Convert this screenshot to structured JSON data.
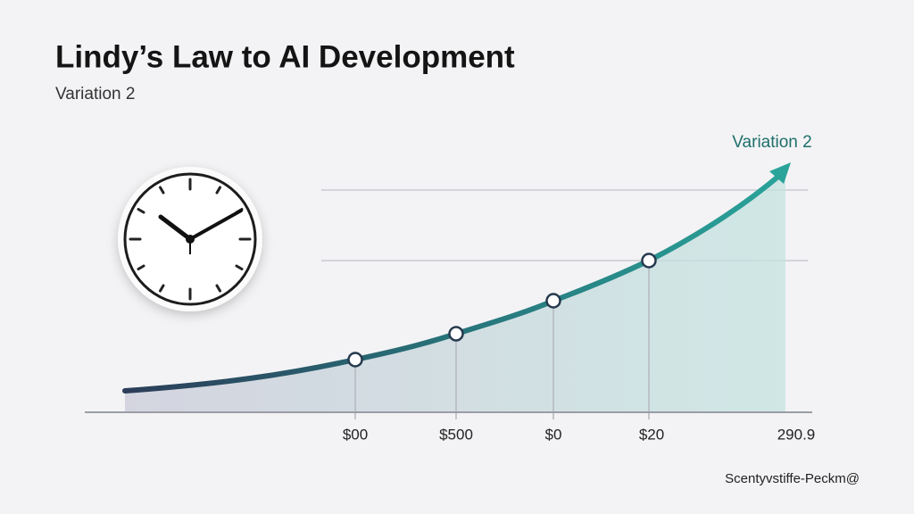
{
  "header": {
    "title": "Lindy’s Law to AI Development",
    "subtitle": "Variation 2"
  },
  "illustration": {
    "curve_label": "Variation 2",
    "x_labels": [
      "$00",
      "$500",
      "$0",
      "$20",
      "290.9"
    ]
  },
  "footer": {
    "credit": "Scentyvstiffe-Peckm@"
  }
}
